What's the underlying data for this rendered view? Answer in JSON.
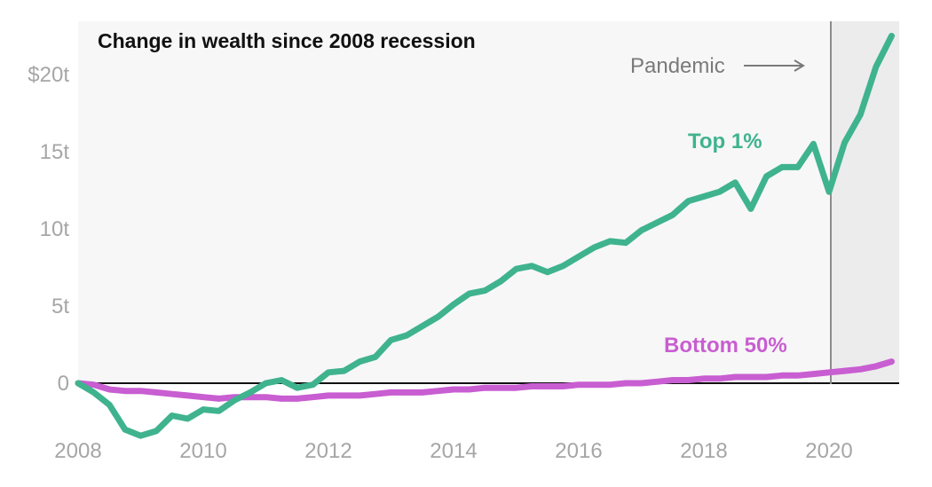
{
  "chart_data": {
    "type": "line",
    "title": "Change in wealth since 2008 recession",
    "xlabel": "",
    "ylabel": "",
    "x_ticks": [
      "2008",
      "2010",
      "2012",
      "2014",
      "2016",
      "2018",
      "2020"
    ],
    "y_ticks": [
      "0",
      "5t",
      "10t",
      "15t",
      "$20t"
    ],
    "y_tick_values": [
      0,
      5,
      10,
      15,
      20
    ],
    "x_tick_values": [
      2008,
      2010,
      2012,
      2014,
      2016,
      2018,
      2020
    ],
    "xlim": [
      2008,
      2021.25
    ],
    "ylim": [
      -3.5,
      23
    ],
    "grid": false,
    "annotation": {
      "label": "Pandemic",
      "x": 2020.0
    },
    "colors": {
      "background": "#f7f7f7",
      "shaded_region": "#ececec",
      "axis": "#111111",
      "marker_line": "#8c8c8c"
    },
    "x": [
      2008.0,
      2008.25,
      2008.5,
      2008.75,
      2009.0,
      2009.25,
      2009.5,
      2009.75,
      2010.0,
      2010.25,
      2010.5,
      2010.75,
      2011.0,
      2011.25,
      2011.5,
      2011.75,
      2012.0,
      2012.25,
      2012.5,
      2012.75,
      2013.0,
      2013.25,
      2013.5,
      2013.75,
      2014.0,
      2014.25,
      2014.5,
      2014.75,
      2015.0,
      2015.25,
      2015.5,
      2015.75,
      2016.0,
      2016.25,
      2016.5,
      2016.75,
      2017.0,
      2017.25,
      2017.5,
      2017.75,
      2018.0,
      2018.25,
      2018.5,
      2018.75,
      2019.0,
      2019.25,
      2019.5,
      2019.75,
      2020.0,
      2020.25,
      2020.5,
      2020.75,
      2021.0
    ],
    "series": [
      {
        "name": "Top 1%",
        "color": "#3fb38e",
        "values": [
          0.0,
          -0.6,
          -1.4,
          -3.0,
          -3.4,
          -3.1,
          -2.1,
          -2.3,
          -1.7,
          -1.8,
          -1.1,
          -0.6,
          0.0,
          0.2,
          -0.3,
          -0.1,
          0.7,
          0.8,
          1.4,
          1.7,
          2.8,
          3.1,
          3.7,
          4.3,
          5.1,
          5.8,
          6.0,
          6.6,
          7.4,
          7.6,
          7.2,
          7.6,
          8.2,
          8.8,
          9.2,
          9.1,
          9.9,
          10.4,
          10.9,
          11.8,
          12.1,
          12.4,
          13.0,
          11.3,
          13.4,
          14.0,
          14.0,
          15.5,
          12.4,
          15.6,
          17.4,
          20.5,
          22.5
        ]
      },
      {
        "name": "Bottom 50%",
        "color": "#c85ed1",
        "values": [
          0.0,
          -0.1,
          -0.4,
          -0.5,
          -0.5,
          -0.6,
          -0.7,
          -0.8,
          -0.9,
          -1.0,
          -0.9,
          -0.9,
          -0.9,
          -1.0,
          -1.0,
          -0.9,
          -0.8,
          -0.8,
          -0.8,
          -0.7,
          -0.6,
          -0.6,
          -0.6,
          -0.5,
          -0.4,
          -0.4,
          -0.3,
          -0.3,
          -0.3,
          -0.2,
          -0.2,
          -0.2,
          -0.1,
          -0.1,
          -0.1,
          0.0,
          0.0,
          0.1,
          0.2,
          0.2,
          0.3,
          0.3,
          0.4,
          0.4,
          0.4,
          0.5,
          0.5,
          0.6,
          0.7,
          0.8,
          0.9,
          1.1,
          1.4
        ]
      }
    ]
  }
}
